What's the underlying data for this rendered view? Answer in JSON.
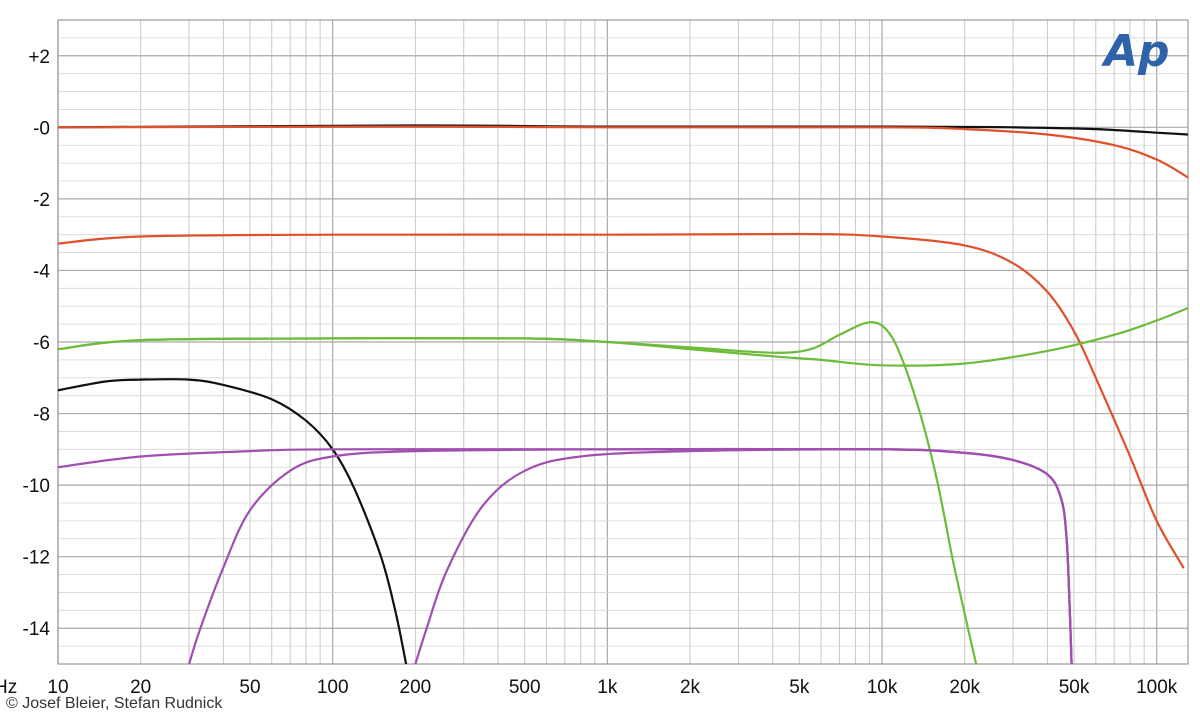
{
  "brand": {
    "logo_text": "Ap",
    "logo_color": "#2f63a9"
  },
  "credit": "© Josef Bleier, Stefan Rudnick",
  "x_axis_left_label": "Hz",
  "chart_data": {
    "type": "line",
    "x_scale": "log",
    "xlim": [
      10,
      130000
    ],
    "ylim": [
      -15,
      3
    ],
    "grid": true,
    "x_ticks": [
      {
        "value": 10,
        "label": "10"
      },
      {
        "value": 20,
        "label": "20"
      },
      {
        "value": 50,
        "label": "50"
      },
      {
        "value": 100,
        "label": "100"
      },
      {
        "value": 200,
        "label": "200"
      },
      {
        "value": 500,
        "label": "500"
      },
      {
        "value": 1000,
        "label": "1k"
      },
      {
        "value": 2000,
        "label": "2k"
      },
      {
        "value": 5000,
        "label": "5k"
      },
      {
        "value": 10000,
        "label": "10k"
      },
      {
        "value": 20000,
        "label": "20k"
      },
      {
        "value": 50000,
        "label": "50k"
      },
      {
        "value": 100000,
        "label": "100k"
      }
    ],
    "y_ticks": [
      {
        "value": 2,
        "label": "+2"
      },
      {
        "value": 0,
        "label": "-0"
      },
      {
        "value": -2,
        "label": "-2"
      },
      {
        "value": -4,
        "label": "-4"
      },
      {
        "value": -6,
        "label": "-6"
      },
      {
        "value": -8,
        "label": "-8"
      },
      {
        "value": -10,
        "label": "-10"
      },
      {
        "value": -12,
        "label": "-12"
      },
      {
        "value": -14,
        "label": "-14"
      }
    ],
    "series": [
      {
        "color": "#111111",
        "points": [
          [
            10,
            0
          ],
          [
            200,
            0.05
          ],
          [
            1000,
            0.02
          ],
          [
            10000,
            0.02
          ],
          [
            30000,
            0
          ],
          [
            60000,
            -0.05
          ],
          [
            100000,
            -0.15
          ],
          [
            130000,
            -0.2
          ]
        ]
      },
      {
        "color": "#e0502a",
        "points": [
          [
            10,
            0
          ],
          [
            200,
            0.02
          ],
          [
            1000,
            0
          ],
          [
            10000,
            0
          ],
          [
            20000,
            -0.05
          ],
          [
            40000,
            -0.2
          ],
          [
            70000,
            -0.5
          ],
          [
            100000,
            -0.9
          ],
          [
            130000,
            -1.4
          ]
        ]
      },
      {
        "color": "#e0502a",
        "points": [
          [
            10,
            -3.25
          ],
          [
            20,
            -3.05
          ],
          [
            100,
            -3.0
          ],
          [
            1000,
            -3.0
          ],
          [
            5000,
            -2.98
          ],
          [
            10000,
            -3.05
          ],
          [
            20000,
            -3.3
          ],
          [
            30000,
            -3.8
          ],
          [
            40000,
            -4.6
          ],
          [
            50000,
            -5.7
          ],
          [
            60000,
            -7.0
          ],
          [
            80000,
            -9.2
          ],
          [
            100000,
            -11.0
          ],
          [
            125000,
            -12.3
          ]
        ]
      },
      {
        "color": "#6cbc3a",
        "points": [
          [
            10,
            -6.2
          ],
          [
            20,
            -5.95
          ],
          [
            100,
            -5.9
          ],
          [
            500,
            -5.9
          ],
          [
            1000,
            -6.0
          ],
          [
            2000,
            -6.2
          ],
          [
            4000,
            -6.4
          ],
          [
            6000,
            -6.5
          ],
          [
            10000,
            -6.65
          ],
          [
            20000,
            -6.6
          ],
          [
            40000,
            -6.25
          ],
          [
            70000,
            -5.8
          ],
          [
            100000,
            -5.4
          ],
          [
            130000,
            -5.05
          ]
        ]
      },
      {
        "color": "#6cbc3a",
        "points": [
          [
            10,
            -6.2
          ],
          [
            20,
            -5.95
          ],
          [
            100,
            -5.9
          ],
          [
            500,
            -5.9
          ],
          [
            1000,
            -6.0
          ],
          [
            2000,
            -6.15
          ],
          [
            4000,
            -6.3
          ],
          [
            5500,
            -6.2
          ],
          [
            7000,
            -5.8
          ],
          [
            9000,
            -5.45
          ],
          [
            10500,
            -5.7
          ],
          [
            12000,
            -6.6
          ],
          [
            14000,
            -8.2
          ],
          [
            16000,
            -10.0
          ],
          [
            18000,
            -12.0
          ],
          [
            20000,
            -13.6
          ],
          [
            22000,
            -15.0
          ]
        ]
      },
      {
        "color": "#111111",
        "points": [
          [
            10,
            -7.35
          ],
          [
            15,
            -7.1
          ],
          [
            20,
            -7.05
          ],
          [
            30,
            -7.05
          ],
          [
            40,
            -7.2
          ],
          [
            60,
            -7.6
          ],
          [
            80,
            -8.2
          ],
          [
            100,
            -9.0
          ],
          [
            120,
            -10.1
          ],
          [
            150,
            -12.0
          ],
          [
            170,
            -13.6
          ],
          [
            185,
            -15.0
          ]
        ]
      },
      {
        "color": "#a04fb0",
        "points": [
          [
            10,
            -9.5
          ],
          [
            20,
            -9.2
          ],
          [
            50,
            -9.05
          ],
          [
            100,
            -9.0
          ],
          [
            1000,
            -9.0
          ],
          [
            10000,
            -9.0
          ],
          [
            20000,
            -9.1
          ],
          [
            30000,
            -9.3
          ],
          [
            40000,
            -9.7
          ],
          [
            45000,
            -10.4
          ],
          [
            47000,
            -11.5
          ],
          [
            48000,
            -13.0
          ],
          [
            49000,
            -15.0
          ]
        ]
      },
      {
        "color": "#a04fb0",
        "points": [
          [
            30,
            -15.0
          ],
          [
            33,
            -14.0
          ],
          [
            40,
            -12.3
          ],
          [
            50,
            -10.7
          ],
          [
            70,
            -9.6
          ],
          [
            100,
            -9.2
          ],
          [
            200,
            -9.05
          ],
          [
            1000,
            -9.0
          ],
          [
            10000,
            -9.0
          ],
          [
            20000,
            -9.1
          ],
          [
            30000,
            -9.3
          ],
          [
            40000,
            -9.7
          ],
          [
            45000,
            -10.4
          ],
          [
            47000,
            -11.5
          ],
          [
            48000,
            -13.0
          ],
          [
            49000,
            -15.0
          ]
        ]
      },
      {
        "color": "#a04fb0",
        "points": [
          [
            200,
            -15.0
          ],
          [
            220,
            -14.0
          ],
          [
            260,
            -12.4
          ],
          [
            350,
            -10.6
          ],
          [
            500,
            -9.6
          ],
          [
            800,
            -9.2
          ],
          [
            2000,
            -9.05
          ],
          [
            10000,
            -9.0
          ],
          [
            20000,
            -9.1
          ],
          [
            30000,
            -9.3
          ],
          [
            40000,
            -9.7
          ],
          [
            45000,
            -10.4
          ],
          [
            47000,
            -11.5
          ],
          [
            48000,
            -13.0
          ],
          [
            49000,
            -15.0
          ]
        ]
      }
    ]
  }
}
